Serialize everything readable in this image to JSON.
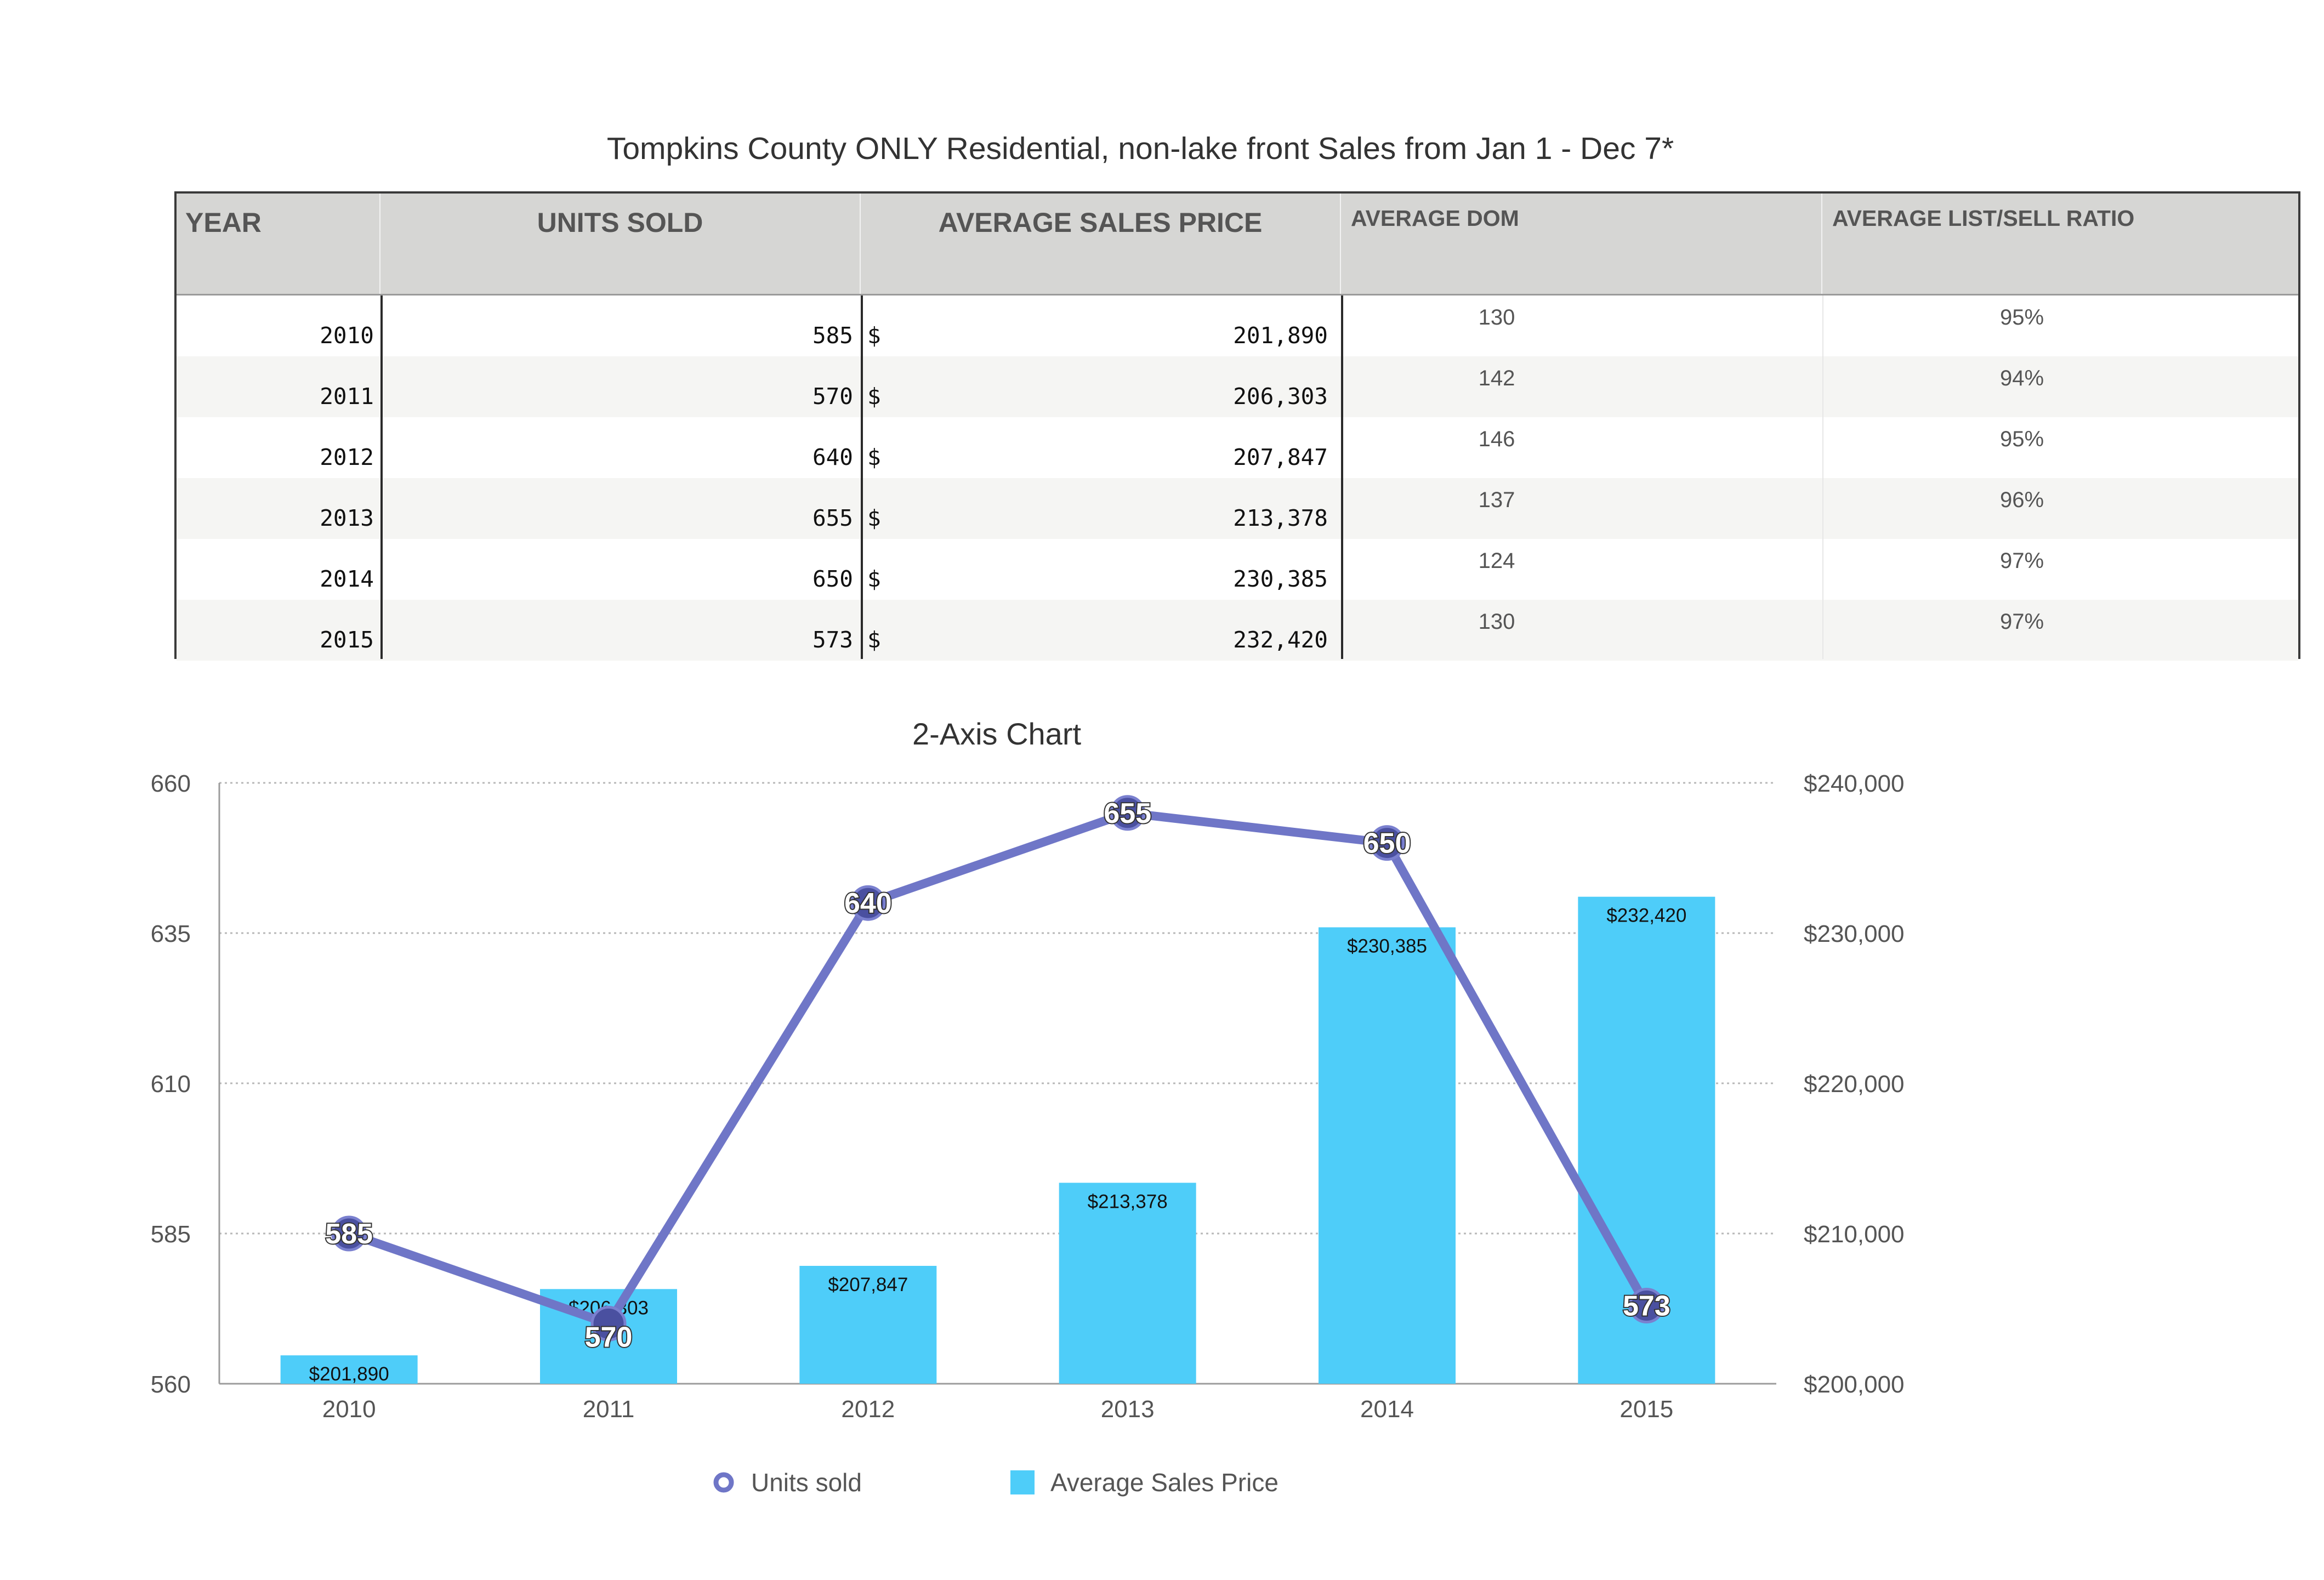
{
  "table": {
    "title": "Tompkins County ONLY Residential, non-lake front Sales from Jan 1 - Dec 7*",
    "headers": [
      "YEAR",
      "UNITS SOLD",
      "AVERAGE SALES PRICE",
      "AVERAGE DOM",
      "AVERAGE LIST/SELL RATIO"
    ],
    "rows": [
      {
        "year": "2010",
        "units": "585",
        "currency": "$",
        "price": "201,890",
        "dom": "130",
        "ratio": "95%"
      },
      {
        "year": "2011",
        "units": "570",
        "currency": "$",
        "price": "206,303",
        "dom": "142",
        "ratio": "94%"
      },
      {
        "year": "2012",
        "units": "640",
        "currency": "$",
        "price": "207,847",
        "dom": "146",
        "ratio": "95%"
      },
      {
        "year": "2013",
        "units": "655",
        "currency": "$",
        "price": "213,378",
        "dom": "137",
        "ratio": "96%"
      },
      {
        "year": "2014",
        "units": "650",
        "currency": "$",
        "price": "230,385",
        "dom": "124",
        "ratio": "97%"
      },
      {
        "year": "2015",
        "units": "573",
        "currency": "$",
        "price": "232,420",
        "dom": "130",
        "ratio": "97%"
      }
    ]
  },
  "chart_data": {
    "type": "bar+line",
    "title": "2-Axis Chart",
    "categories": [
      "2010",
      "2011",
      "2012",
      "2013",
      "2014",
      "2015"
    ],
    "left_axis": {
      "range": [
        560,
        660
      ],
      "ticks": [
        "660",
        "635",
        "610",
        "585",
        "560"
      ],
      "tick_values": [
        660,
        635,
        610,
        585,
        560
      ]
    },
    "right_axis": {
      "range": [
        200000,
        240000
      ],
      "ticks": [
        "$240,000",
        "$230,000",
        "$220,000",
        "$210,000",
        "$200,000"
      ],
      "tick_values": [
        240000,
        230000,
        220000,
        210000,
        200000
      ]
    },
    "grid": true,
    "legend_position": "bottom",
    "series": [
      {
        "name": "Units sold",
        "type": "line",
        "axis": "left",
        "color": "#6f76c7",
        "values": [
          585,
          570,
          640,
          655,
          650,
          573
        ],
        "labels": [
          "585",
          "570",
          "640",
          "655",
          "650",
          "573"
        ]
      },
      {
        "name": "Average Sales Price",
        "type": "bar",
        "axis": "right",
        "color": "#4ecdf9",
        "values": [
          201890,
          206303,
          207847,
          213378,
          230385,
          232420
        ],
        "labels": [
          "$201,890",
          "$206,303",
          "$207,847",
          "$213,378",
          "$230,385",
          "$232,420"
        ]
      }
    ]
  }
}
